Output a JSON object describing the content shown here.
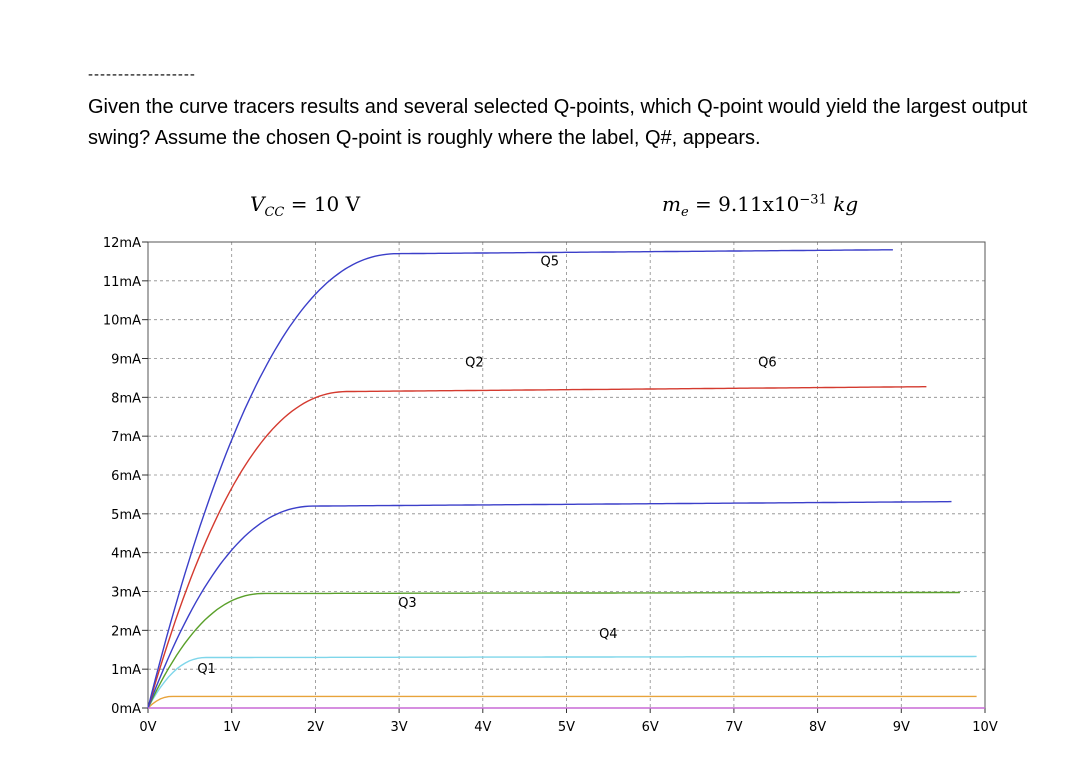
{
  "header": {
    "rule": "------------------",
    "question": "Given the curve tracers results and several selected Q-points, which Q-point would yield the largest output swing?  Assume the chosen Q-point is roughly where the label, Q#, appears."
  },
  "annotations": {
    "vcc": {
      "symbol": "V",
      "sub": "CC",
      "rest": " = 10 V"
    },
    "me": {
      "symbol": "m",
      "sub": "e",
      "rest": " = 9.11x10",
      "sup": "−31",
      "unit": " kg"
    }
  },
  "chart_data": {
    "type": "line",
    "x_ticks": [
      "0V",
      "1V",
      "2V",
      "3V",
      "4V",
      "5V",
      "6V",
      "7V",
      "8V",
      "9V",
      "10V"
    ],
    "y_ticks": [
      "0mA",
      "1mA",
      "2mA",
      "3mA",
      "4mA",
      "5mA",
      "6mA",
      "7mA",
      "8mA",
      "9mA",
      "10mA",
      "11mA",
      "12mA"
    ],
    "xlim": [
      0,
      10
    ],
    "ylim": [
      0,
      12
    ],
    "grid": true,
    "series": [
      {
        "color": "#e8a33a",
        "ic_sat": 0.3,
        "x_knee": 0.3,
        "slope": 0.0,
        "x_end": 9.9
      },
      {
        "color": "#7fd6ea",
        "ic_sat": 1.3,
        "x_knee": 0.7,
        "slope": 0.003,
        "x_end": 9.9
      },
      {
        "color": "#5aa02a",
        "ic_sat": 2.95,
        "x_knee": 1.4,
        "slope": 0.003,
        "x_end": 9.7
      },
      {
        "color": "#3b3fc9",
        "ic_sat": 5.2,
        "x_knee": 2.0,
        "slope": 0.015,
        "x_end": 9.6
      },
      {
        "color": "#d43a2f",
        "ic_sat": 8.15,
        "x_knee": 2.4,
        "slope": 0.018,
        "x_end": 9.3
      },
      {
        "color": "#3b3fc9",
        "ic_sat": 11.7,
        "x_knee": 3.0,
        "slope": 0.017,
        "x_end": 8.9
      },
      {
        "color": "#c86ad6",
        "ic_sat": 0.0,
        "x_knee": 0.0,
        "slope": 0.0,
        "x_end": 10.0
      }
    ],
    "q_points": [
      {
        "label": "Q1",
        "x": 0.7,
        "y": 0.9
      },
      {
        "label": "Q2",
        "x": 3.9,
        "y": 8.8
      },
      {
        "label": "Q3",
        "x": 3.1,
        "y": 2.6
      },
      {
        "label": "Q4",
        "x": 5.5,
        "y": 1.8
      },
      {
        "label": "Q5",
        "x": 4.8,
        "y": 11.4
      },
      {
        "label": "Q6",
        "x": 7.4,
        "y": 8.8
      }
    ]
  }
}
